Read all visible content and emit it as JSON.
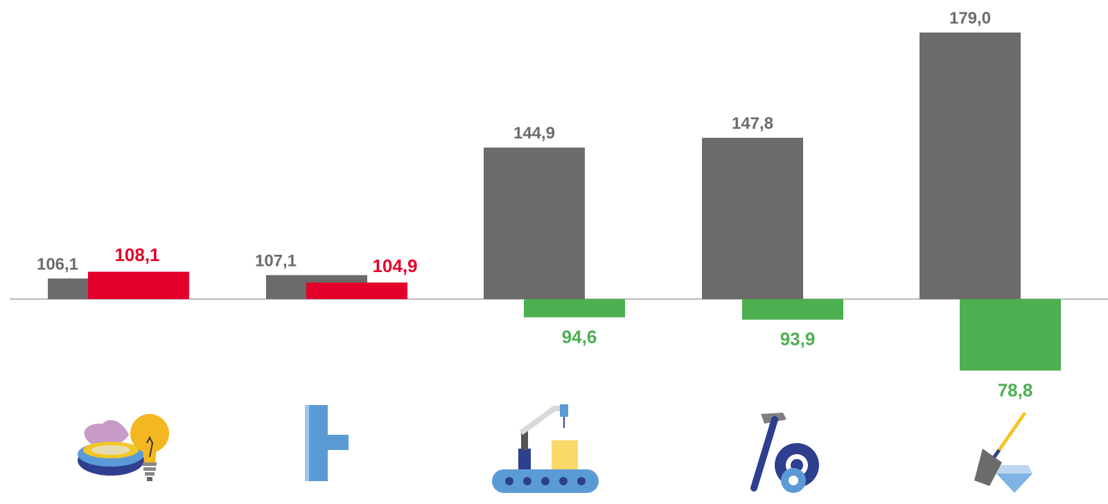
{
  "chart_data": {
    "type": "bar",
    "categories": [
      "",
      "",
      "",
      "",
      ""
    ],
    "series": [
      {
        "values": [
          106.1,
          107.1,
          144.9,
          147.8,
          179.0
        ]
      },
      {
        "values": [
          108.1,
          104.9,
          94.6,
          93.9,
          78.8
        ]
      }
    ],
    "labels": {
      "series1": [
        "106,1",
        "107,1",
        "144,9",
        "147,8",
        "179,0"
      ],
      "series2": [
        "108,1",
        "104,9",
        "94,6",
        "93,9",
        "78,8"
      ]
    },
    "baseline": 100,
    "ylim": [
      75,
      182
    ],
    "grid": false,
    "colors": {
      "series1": "#6b6b6b",
      "series2_above": "#e4002b",
      "series2_below": "#4caf50",
      "axis": "#a6a6a6"
    }
  },
  "icons": [
    "gas-burner-and-lightbulb-icon",
    "water-pipe-icon",
    "factory-conveyor-icon",
    "hammer-and-gears-icon",
    "shovel-and-diamond-icon"
  ]
}
